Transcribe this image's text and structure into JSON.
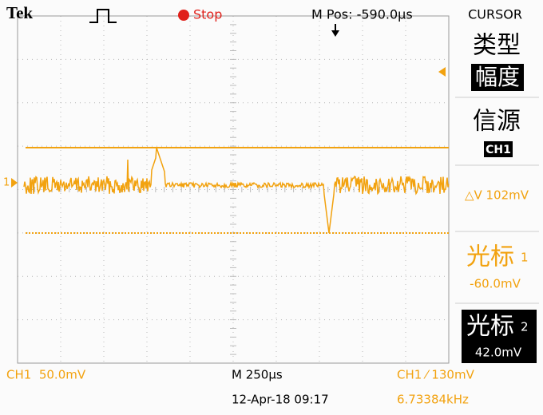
{
  "header": {
    "brand": "Tek",
    "status": "Stop",
    "position": "M Pos: -590.0µs"
  },
  "markers": {
    "channel": "1"
  },
  "menu": {
    "title": "CURSOR",
    "type": {
      "label": "类型",
      "value": "幅度"
    },
    "source": {
      "label": "信源",
      "value": "CH1"
    },
    "delta": "△V 102mV",
    "cursor1": {
      "name": "光标",
      "number": "1",
      "value": "-60.0mV"
    },
    "cursor2": {
      "name": "光标",
      "number": "2",
      "value": "42.0mV"
    }
  },
  "footer": {
    "channel_scale": "CH1  50.0mV",
    "time_scale": "M 250µs",
    "trigger": "CH1 ⁄ 130mV",
    "datetime": "12-Apr-18 09:17",
    "frequency": "6.73384kHz"
  }
}
